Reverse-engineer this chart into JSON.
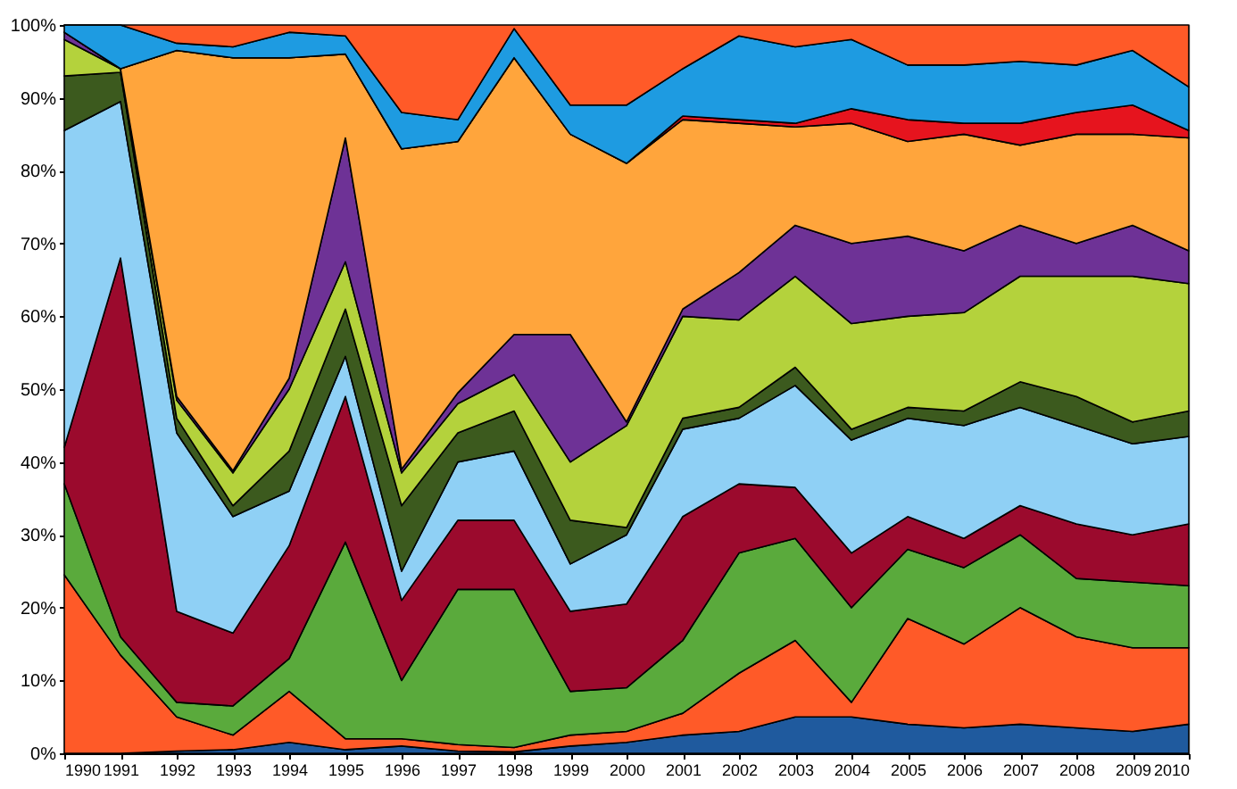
{
  "chart_data": {
    "type": "area",
    "stacked": true,
    "legend": false,
    "x": [
      1990,
      1991,
      1992,
      1993,
      1994,
      1995,
      1996,
      1997,
      1998,
      1999,
      2000,
      2001,
      2002,
      2003,
      2004,
      2005,
      2006,
      2007,
      2008,
      2009,
      2010
    ],
    "xlim": [
      1990,
      2010
    ],
    "xticks": [
      1990,
      1991,
      1992,
      1993,
      1994,
      1995,
      1996,
      1997,
      1998,
      1999,
      2000,
      2001,
      2002,
      2003,
      2004,
      2005,
      2006,
      2007,
      2008,
      2009,
      2010
    ],
    "ylim": [
      0,
      100
    ],
    "yticks": [
      {
        "value": 0,
        "label": "0%"
      },
      {
        "value": 10,
        "label": "10%"
      },
      {
        "value": 20,
        "label": "20%"
      },
      {
        "value": 30,
        "label": "30%"
      },
      {
        "value": 40,
        "label": "40%"
      },
      {
        "value": 50,
        "label": "50%"
      },
      {
        "value": 60,
        "label": "60%"
      },
      {
        "value": 70,
        "label": "70%"
      },
      {
        "value": 80,
        "label": "80%"
      },
      {
        "value": 90,
        "label": "90%"
      },
      {
        "value": 100,
        "label": "100%"
      }
    ],
    "series": [
      {
        "color": "#1f5a9e",
        "values": [
          0,
          0,
          0.3,
          0.5,
          1.5,
          0.5,
          1,
          0.3,
          0.2,
          1,
          1.5,
          2.5,
          3,
          5,
          5,
          4,
          3.5,
          4,
          3.5,
          3,
          4
        ]
      },
      {
        "color": "#ff5a28",
        "values": [
          24.5,
          13.5,
          4.7,
          2,
          7,
          1.5,
          1,
          0.9,
          0.6,
          1.5,
          1.5,
          3,
          8,
          10.5,
          2,
          14.5,
          11.5,
          16,
          12.5,
          11.5,
          10.5
        ]
      },
      {
        "color": "#5aaa3c",
        "values": [
          12.5,
          2.5,
          2,
          4,
          4.5,
          27,
          8,
          21.3,
          21.7,
          6,
          6,
          10,
          16.5,
          14,
          13,
          9.5,
          10.5,
          10,
          8,
          9,
          8.5
        ]
      },
      {
        "color": "#9b0a2d",
        "values": [
          5,
          52,
          12.5,
          10,
          15.5,
          20,
          11,
          9.5,
          9.5,
          11,
          11.5,
          17,
          9.5,
          7,
          7.5,
          4.5,
          4,
          4,
          7.5,
          6.5,
          8.5
        ]
      },
      {
        "color": "#8fd0f5",
        "values": [
          43.5,
          21.5,
          24.5,
          16,
          7.5,
          5.5,
          4,
          8,
          9.5,
          6.5,
          9.5,
          12,
          9,
          14,
          15.5,
          13.5,
          15.5,
          13.5,
          13.5,
          12.5,
          12
        ]
      },
      {
        "color": "#3c5a1e",
        "values": [
          7.5,
          4,
          2,
          1.5,
          5.5,
          6.5,
          9,
          4,
          5.5,
          6,
          1,
          1.5,
          1.5,
          2.5,
          1.5,
          1.5,
          2,
          3.5,
          4,
          3,
          3.5
        ]
      },
      {
        "color": "#b4d23c",
        "values": [
          5,
          0.5,
          2.5,
          4.5,
          8.5,
          6.5,
          4.5,
          4,
          5,
          8,
          14,
          14,
          12,
          12.5,
          14.5,
          12.5,
          13.5,
          14.5,
          16.5,
          20,
          17.5
        ]
      },
      {
        "color": "#6e3296",
        "values": [
          1,
          0,
          0.5,
          0.3,
          1.5,
          17,
          0.5,
          1.5,
          5.5,
          17.5,
          0.5,
          1,
          6.5,
          7,
          11,
          11,
          8.5,
          7,
          4.5,
          7,
          4.5
        ]
      },
      {
        "color": "#ffa53c",
        "values": [
          0,
          0,
          47.5,
          56.7,
          44,
          11.5,
          44,
          34.5,
          38,
          27.5,
          35.5,
          26,
          20.5,
          13.5,
          16.5,
          13,
          16,
          11,
          15,
          12.5,
          15.5
        ]
      },
      {
        "color": "#e6141e",
        "values": [
          0,
          0,
          0,
          0,
          0,
          0,
          0,
          0,
          0,
          0,
          0,
          0.5,
          0.5,
          0.5,
          2,
          3,
          1.5,
          3,
          3,
          4,
          1
        ]
      },
      {
        "color": "#1e9be1",
        "values": [
          1,
          6,
          1,
          1.5,
          3.5,
          2.5,
          5,
          3,
          4,
          4,
          8,
          6.5,
          11.5,
          10.5,
          9.5,
          7.5,
          8,
          8.5,
          6.5,
          7.5,
          6
        ]
      },
      {
        "color": "#ff5a28",
        "values": [
          0,
          0,
          2.5,
          3,
          1,
          1.5,
          12,
          13,
          0.5,
          11,
          11,
          6,
          1.5,
          3,
          2,
          5.5,
          5.5,
          5,
          5.5,
          3.5,
          8.5
        ]
      }
    ]
  }
}
